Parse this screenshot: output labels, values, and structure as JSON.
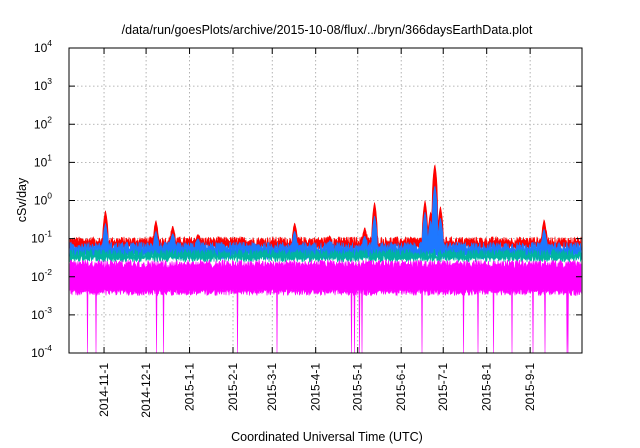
{
  "chart_data": {
    "type": "line",
    "title": "/data/run/goesPlots/archive/2015-10-08/flux/../bryn/366daysEarthData.plot",
    "xlabel": "Coordinated Universal Time (UTC)",
    "ylabel": "cSv/day",
    "yscale": "log",
    "ylim": [
      0.0001,
      10000
    ],
    "y_ticks": [
      {
        "base": "10",
        "exp": "-4",
        "value": 0.0001
      },
      {
        "base": "10",
        "exp": "-3",
        "value": 0.001
      },
      {
        "base": "10",
        "exp": "-2",
        "value": 0.01
      },
      {
        "base": "10",
        "exp": "-1",
        "value": 0.1
      },
      {
        "base": "10",
        "exp": "0",
        "value": 1
      },
      {
        "base": "10",
        "exp": "1",
        "value": 10
      },
      {
        "base": "10",
        "exp": "2",
        "value": 100
      },
      {
        "base": "10",
        "exp": "3",
        "value": 1000
      },
      {
        "base": "10",
        "exp": "4",
        "value": 10000
      }
    ],
    "xlim": [
      "2014-10-07",
      "2015-10-08"
    ],
    "x_ticks": [
      "2014-11-1",
      "2014-12-1",
      "2015-1-1",
      "2015-2-1",
      "2015-3-1",
      "2015-4-1",
      "2015-5-1",
      "2015-6-1",
      "2015-7-1",
      "2015-8-1",
      "2015-9-1"
    ],
    "x_tick_dates": [
      "2014-11-01",
      "2014-12-01",
      "2015-01-01",
      "2015-02-01",
      "2015-03-01",
      "2015-04-01",
      "2015-05-01",
      "2015-06-01",
      "2015-07-01",
      "2015-08-01",
      "2015-09-01"
    ],
    "grid": true,
    "series": [
      {
        "color": "#ff0000",
        "baseline": 0.09,
        "lower": 0.06
      },
      {
        "color": "#1e78ff",
        "baseline": 0.065,
        "lower": 0.035
      },
      {
        "color": "#00b4a0",
        "baseline": 0.042,
        "lower": 0.03
      },
      {
        "color": "#ff00ff",
        "baseline": 0.022,
        "lower": 0.004,
        "dropout_floor": 0.0001
      }
    ],
    "spikes": [
      {
        "date": "2014-11-02",
        "red": 0.55,
        "blue": 0.25
      },
      {
        "date": "2014-12-08",
        "red": 0.3,
        "blue": 0.16
      },
      {
        "date": "2014-12-20",
        "red": 0.22,
        "blue": 0.14
      },
      {
        "date": "2015-01-07",
        "red": 0.13,
        "blue": 0.1
      },
      {
        "date": "2015-03-17",
        "red": 0.26,
        "blue": 0.16
      },
      {
        "date": "2015-04-11",
        "red": 0.12,
        "blue": 0.09
      },
      {
        "date": "2015-05-06",
        "red": 0.2,
        "blue": 0.12
      },
      {
        "date": "2015-05-13",
        "red": 0.9,
        "blue": 0.4
      },
      {
        "date": "2015-06-18",
        "red": 1.0,
        "blue": 0.5
      },
      {
        "date": "2015-06-22",
        "red": 0.5,
        "blue": 0.3
      },
      {
        "date": "2015-06-25",
        "red": 9.0,
        "blue": 2.5
      },
      {
        "date": "2015-06-29",
        "red": 0.7,
        "blue": 0.35
      },
      {
        "date": "2015-09-11",
        "red": 0.32,
        "blue": 0.18
      }
    ]
  }
}
